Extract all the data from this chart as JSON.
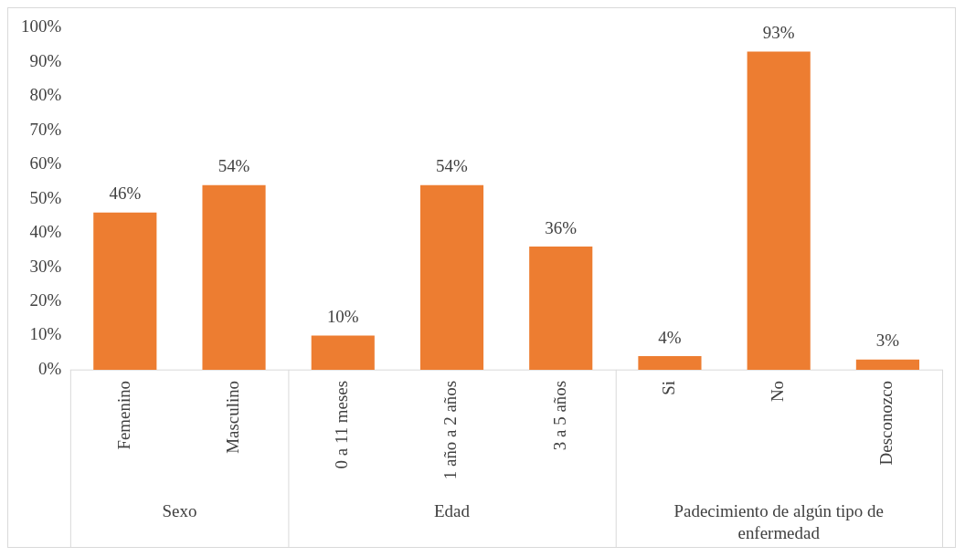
{
  "chart_data": {
    "type": "bar",
    "categories": [
      "Femenino",
      "Masculino",
      "0 a 11 meses",
      "1 año a 2 años",
      "3 a 5 años",
      "Si",
      "No",
      "Desconozco"
    ],
    "values": [
      46,
      54,
      10,
      54,
      36,
      4,
      93,
      3
    ],
    "value_labels": [
      "46%",
      "54%",
      "10%",
      "54%",
      "36%",
      "4%",
      "93%",
      "3%"
    ],
    "color": "#ed7d31",
    "ylim": [
      0,
      100
    ],
    "yticks": [
      {
        "value": 0,
        "label": "0%"
      },
      {
        "value": 10,
        "label": "10%"
      },
      {
        "value": 20,
        "label": "20%"
      },
      {
        "value": 30,
        "label": "30%"
      },
      {
        "value": 40,
        "label": "40%"
      },
      {
        "value": 50,
        "label": "50%"
      },
      {
        "value": 60,
        "label": "60%"
      },
      {
        "value": 70,
        "label": "70%"
      },
      {
        "value": 80,
        "label": "80%"
      },
      {
        "value": 90,
        "label": "90%"
      },
      {
        "value": 100,
        "label": "100%"
      }
    ],
    "annotations": [
      "Sexo",
      "Edad",
      "Padecimiento de algún tipo de enfermedad"
    ],
    "grid": false,
    "legend": false
  }
}
